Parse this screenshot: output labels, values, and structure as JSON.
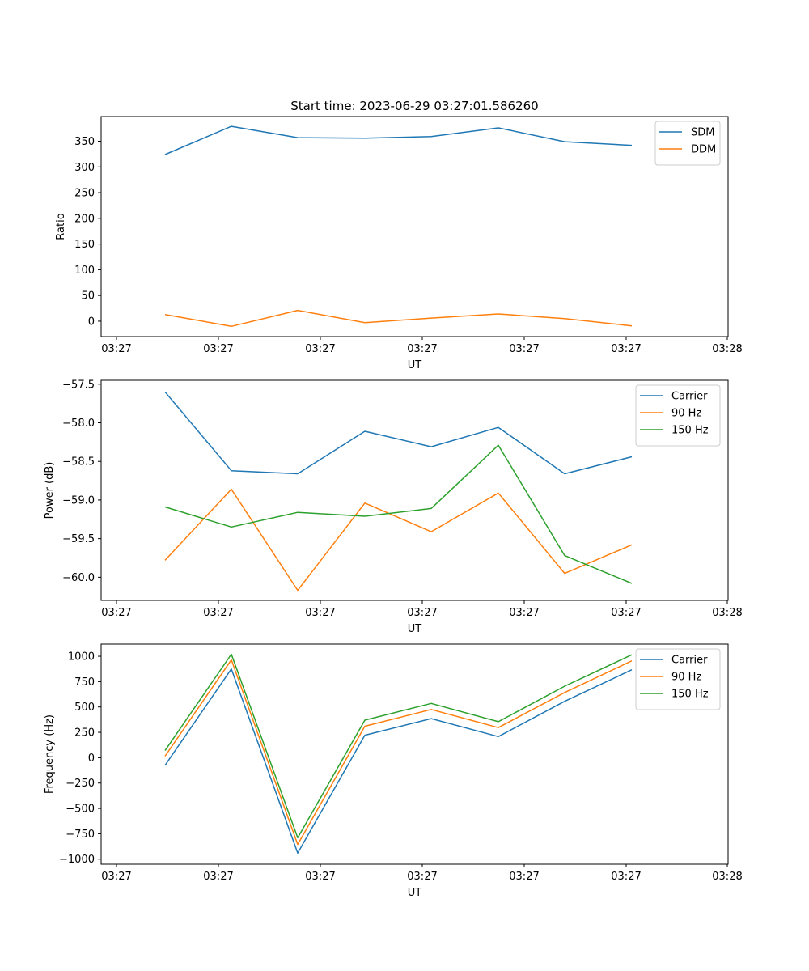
{
  "colors": {
    "blue": "#1f77b4",
    "orange": "#ff7f0e",
    "green": "#2ca02c"
  },
  "chart_data": [
    {
      "type": "line",
      "title": "Start time: 2023-06-29 03:27:01.586260",
      "xlabel": "UT",
      "ylabel": "Ratio",
      "x_tick_labels": [
        "03:27",
        "03:27",
        "03:27",
        "03:27",
        "03:27",
        "03:27",
        "03:28"
      ],
      "y_ticks": [
        0,
        50,
        100,
        150,
        200,
        250,
        300,
        350
      ],
      "ylim": [
        -30,
        398
      ],
      "legend_position": "top-right",
      "grid": false,
      "series": [
        {
          "name": "SDM",
          "color": "#1f77b4",
          "values": [
            324,
            379,
            357,
            356,
            359,
            376,
            349,
            342
          ]
        },
        {
          "name": "DDM",
          "color": "#ff7f0e",
          "values": [
            13,
            -10,
            21,
            -3,
            6,
            14,
            5,
            -9
          ]
        }
      ]
    },
    {
      "type": "line",
      "title": "",
      "xlabel": "UT",
      "ylabel": "Power (dB)",
      "x_tick_labels": [
        "03:27",
        "03:27",
        "03:27",
        "03:27",
        "03:27",
        "03:27",
        "03:28"
      ],
      "y_ticks": [
        -60.0,
        -59.5,
        -59.0,
        -58.5,
        -58.0,
        -57.5
      ],
      "y_tick_labels": [
        "−60.0",
        "−59.5",
        "−59.0",
        "−58.5",
        "−58.0",
        "−57.5"
      ],
      "ylim": [
        -60.3,
        -57.45
      ],
      "legend_position": "top-right",
      "grid": false,
      "series": [
        {
          "name": "Carrier",
          "color": "#1f77b4",
          "values": [
            -57.6,
            -58.62,
            -58.66,
            -58.11,
            -58.31,
            -58.06,
            -58.66,
            -58.44
          ]
        },
        {
          "name": "90 Hz",
          "color": "#ff7f0e",
          "values": [
            -59.78,
            -58.86,
            -60.17,
            -59.04,
            -59.41,
            -58.91,
            -59.95,
            -59.58
          ]
        },
        {
          "name": "150 Hz",
          "color": "#2ca02c",
          "values": [
            -59.09,
            -59.35,
            -59.16,
            -59.21,
            -59.11,
            -58.29,
            -59.72,
            -60.08
          ]
        }
      ]
    },
    {
      "type": "line",
      "title": "",
      "xlabel": "UT",
      "ylabel": "Frequency (Hz)",
      "x_tick_labels": [
        "03:27",
        "03:27",
        "03:27",
        "03:27",
        "03:27",
        "03:27",
        "03:28"
      ],
      "y_ticks": [
        -1000,
        -750,
        -500,
        -250,
        0,
        250,
        500,
        750,
        1000
      ],
      "y_tick_labels": [
        "−1000",
        "−750",
        "−500",
        "−250",
        "0",
        "250",
        "500",
        "750",
        "1000"
      ],
      "ylim": [
        -1050,
        1120
      ],
      "legend_position": "top-right",
      "grid": false,
      "series": [
        {
          "name": "Carrier",
          "color": "#1f77b4",
          "values": [
            -75,
            875,
            -940,
            222,
            385,
            208,
            556,
            867
          ]
        },
        {
          "name": "90 Hz",
          "color": "#ff7f0e",
          "values": [
            15,
            965,
            -855,
            310,
            475,
            297,
            643,
            955
          ]
        },
        {
          "name": "150 Hz",
          "color": "#2ca02c",
          "values": [
            70,
            1020,
            -790,
            370,
            535,
            355,
            705,
            1015
          ]
        }
      ]
    }
  ]
}
